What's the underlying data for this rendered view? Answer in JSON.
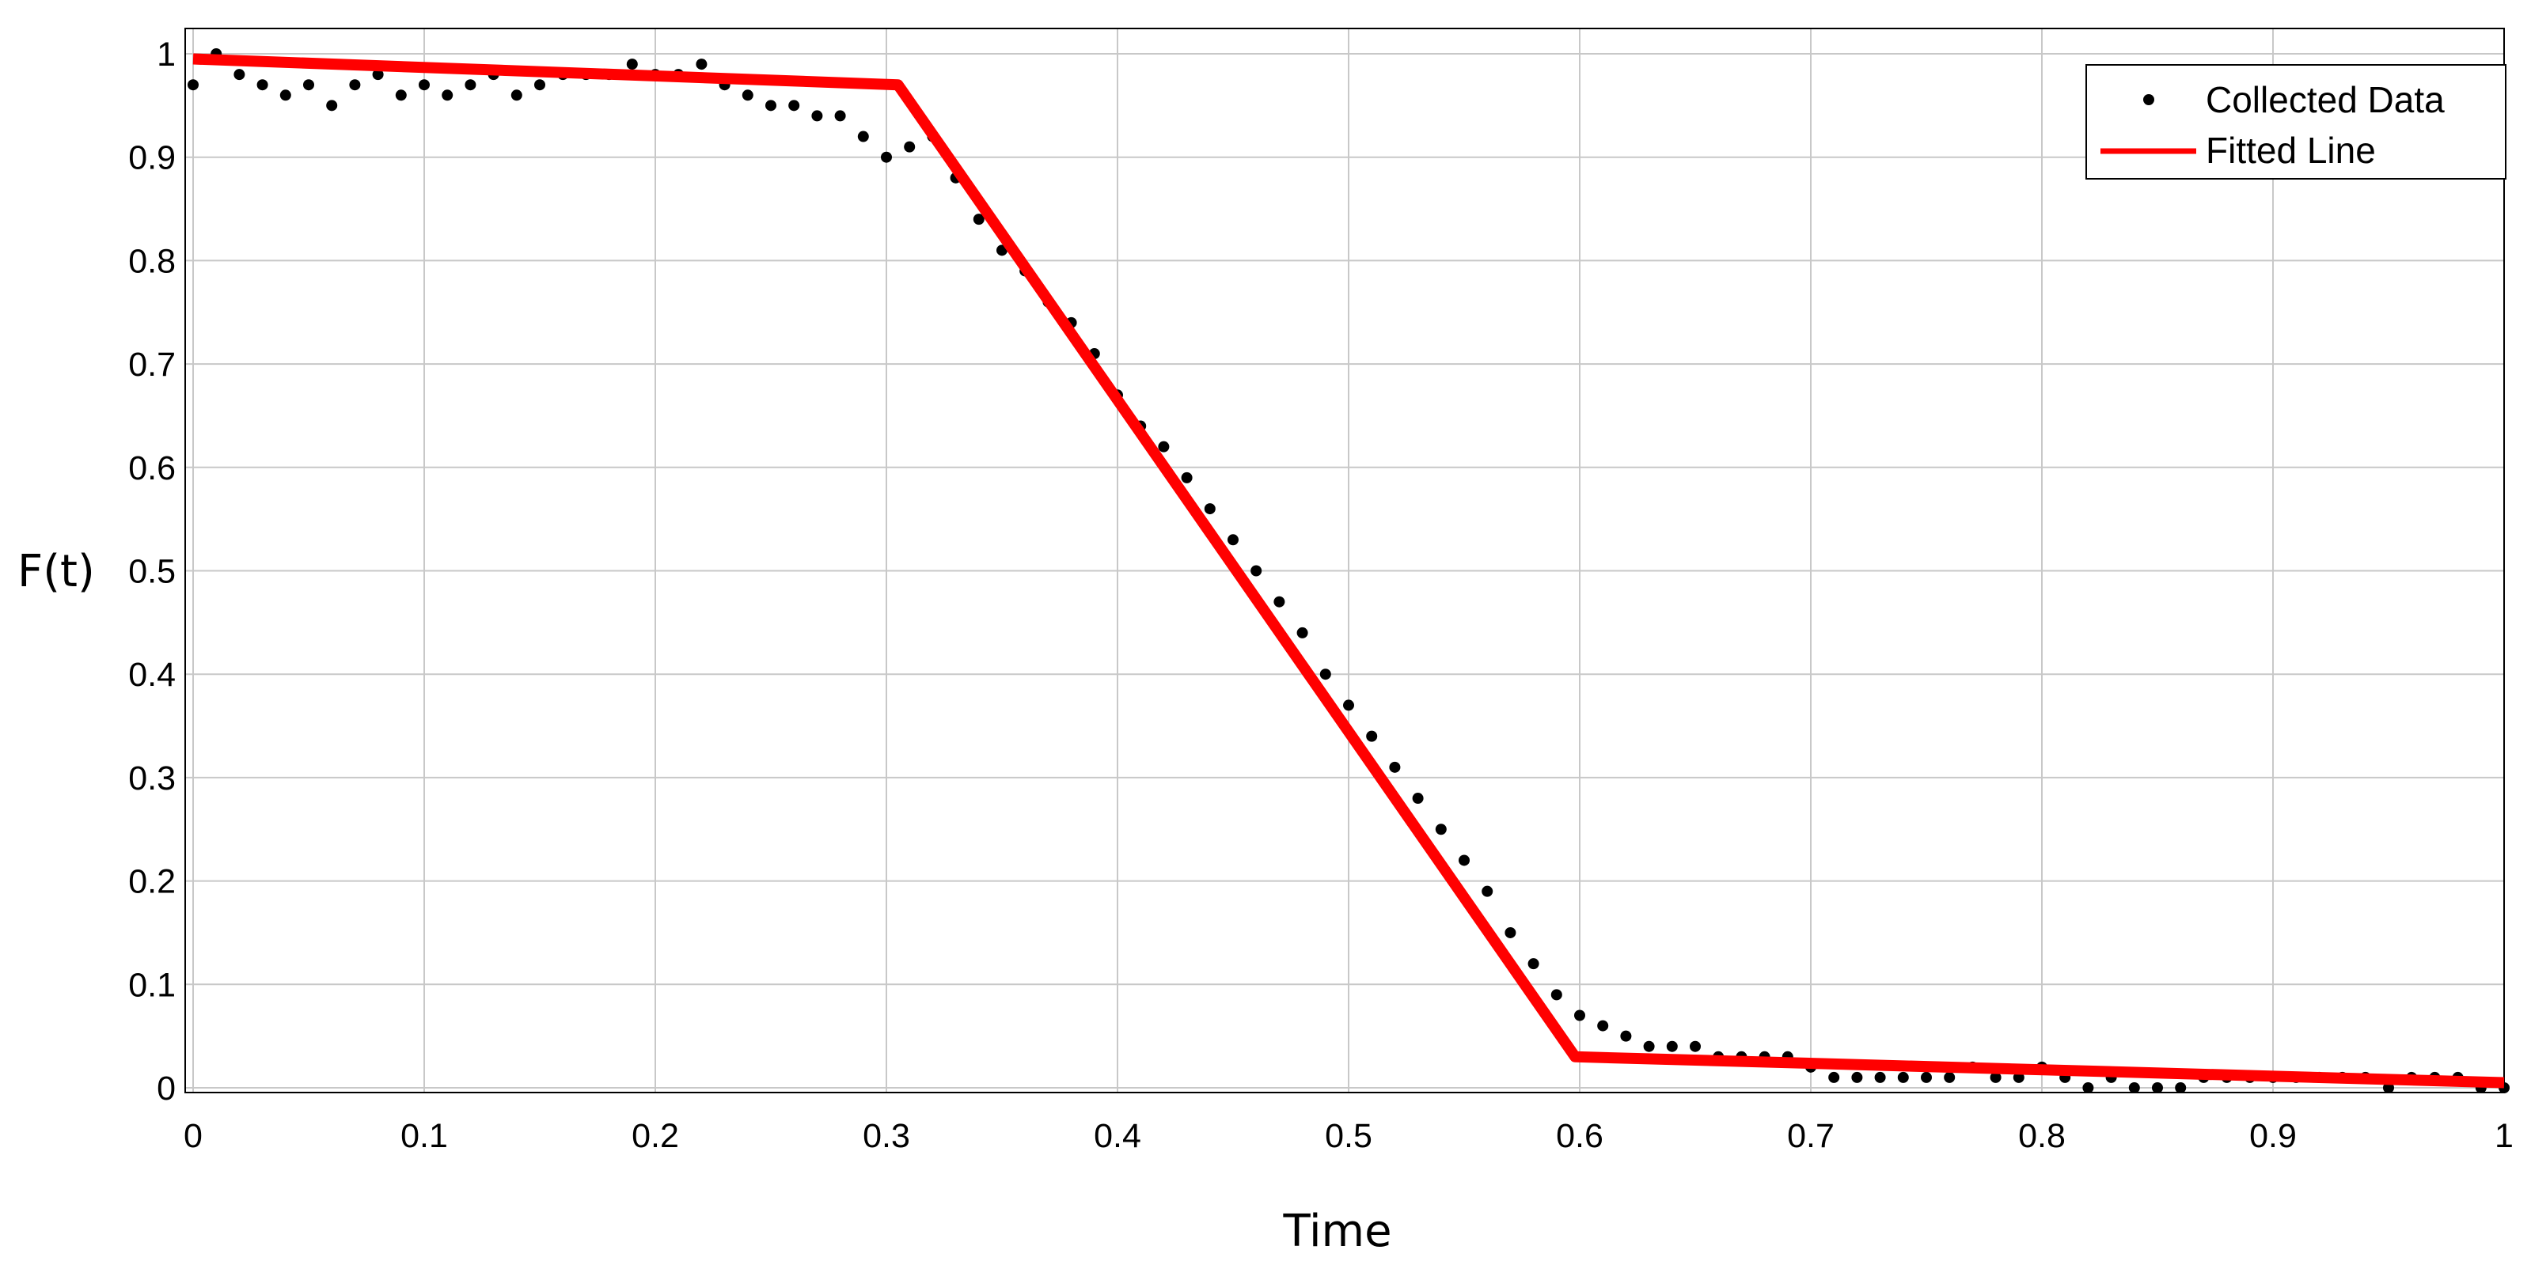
{
  "chart_data": {
    "type": "line",
    "title": "",
    "xlabel": "Time",
    "ylabel": "F(t)",
    "xlim": [
      0,
      1
    ],
    "ylim": [
      0,
      1
    ],
    "x_ticks": [
      0,
      0.1,
      0.2,
      0.3,
      0.4,
      0.5,
      0.6,
      0.7,
      0.8,
      0.9,
      1
    ],
    "x_tick_labels": [
      "0",
      "0.1",
      "0.2",
      "0.3",
      "0.4",
      "0.5",
      "0.6",
      "0.7",
      "0.8",
      "0.9",
      "1"
    ],
    "y_ticks": [
      0,
      0.1,
      0.2,
      0.3,
      0.4,
      0.5,
      0.6,
      0.7,
      0.8,
      0.9,
      1
    ],
    "y_tick_labels": [
      "0",
      "0.1",
      "0.2",
      "0.3",
      "0.4",
      "0.5",
      "0.6",
      "0.7",
      "0.8",
      "0.9",
      "1"
    ],
    "grid": true,
    "legend_position": "top-right",
    "series": [
      {
        "name": "Collected Data",
        "style": "points",
        "color": "#000000",
        "x": [
          0.0,
          0.01,
          0.02,
          0.03,
          0.04,
          0.05,
          0.06,
          0.07,
          0.08,
          0.09,
          0.1,
          0.11,
          0.12,
          0.13,
          0.14,
          0.15,
          0.16,
          0.17,
          0.18,
          0.19,
          0.2,
          0.21,
          0.22,
          0.23,
          0.24,
          0.25,
          0.26,
          0.27,
          0.28,
          0.29,
          0.3,
          0.31,
          0.32,
          0.33,
          0.34,
          0.35,
          0.36,
          0.37,
          0.38,
          0.39,
          0.4,
          0.41,
          0.42,
          0.43,
          0.44,
          0.45,
          0.46,
          0.47,
          0.48,
          0.49,
          0.5,
          0.51,
          0.52,
          0.53,
          0.54,
          0.55,
          0.56,
          0.57,
          0.58,
          0.59,
          0.6,
          0.61,
          0.62,
          0.63,
          0.64,
          0.65,
          0.66,
          0.67,
          0.68,
          0.69,
          0.7,
          0.71,
          0.72,
          0.73,
          0.74,
          0.75,
          0.76,
          0.77,
          0.78,
          0.79,
          0.8,
          0.81,
          0.82,
          0.83,
          0.84,
          0.85,
          0.86,
          0.87,
          0.88,
          0.89,
          0.9,
          0.91,
          0.92,
          0.93,
          0.94,
          0.95,
          0.96,
          0.97,
          0.98,
          0.99,
          1.0
        ],
        "y": [
          0.97,
          1.0,
          0.98,
          0.97,
          0.96,
          0.97,
          0.95,
          0.97,
          0.98,
          0.96,
          0.97,
          0.96,
          0.97,
          0.98,
          0.96,
          0.97,
          0.98,
          0.98,
          0.98,
          0.99,
          0.98,
          0.98,
          0.99,
          0.97,
          0.96,
          0.95,
          0.95,
          0.94,
          0.94,
          0.92,
          0.9,
          0.91,
          0.92,
          0.88,
          0.84,
          0.81,
          0.79,
          0.76,
          0.74,
          0.71,
          0.67,
          0.64,
          0.62,
          0.59,
          0.56,
          0.53,
          0.5,
          0.47,
          0.44,
          0.4,
          0.37,
          0.34,
          0.31,
          0.28,
          0.25,
          0.22,
          0.19,
          0.15,
          0.12,
          0.09,
          0.07,
          0.06,
          0.05,
          0.04,
          0.04,
          0.04,
          0.03,
          0.03,
          0.03,
          0.03,
          0.02,
          0.01,
          0.01,
          0.01,
          0.01,
          0.01,
          0.01,
          0.02,
          0.01,
          0.01,
          0.02,
          0.01,
          0.0,
          0.01,
          0.0,
          0.0,
          0.0,
          0.01,
          0.01,
          0.01,
          0.01,
          0.01,
          0.01,
          0.01,
          0.01,
          0.0,
          0.01,
          0.01,
          0.01,
          0.0,
          0.0
        ]
      },
      {
        "name": "Fitted Line",
        "style": "line",
        "color": "#ff0000",
        "x": [
          0.0,
          0.305,
          0.598,
          1.0
        ],
        "y": [
          0.995,
          0.97,
          0.03,
          0.005
        ]
      }
    ]
  }
}
